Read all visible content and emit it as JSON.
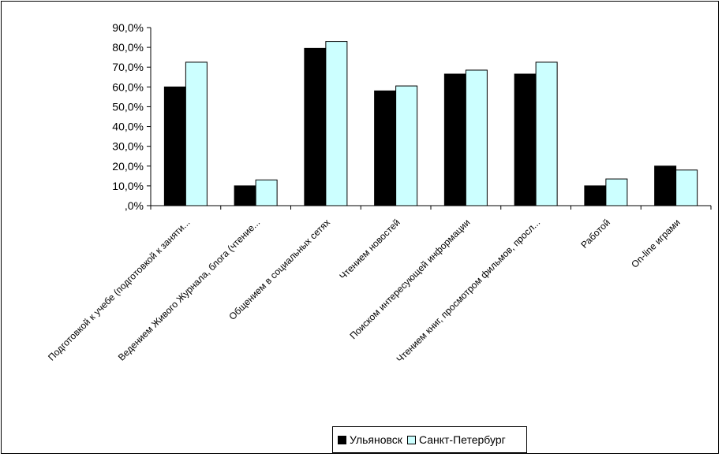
{
  "chart_data": {
    "type": "bar",
    "categories": [
      "Подготовкой к учебе (подготовкой к заняти...",
      "Ведением Живого Журнала, блога (чтение...",
      "Общением в социальных сетях",
      "Чтением новостей",
      "Поиском интересующей информации",
      "Чтением книг, просмотром фильмов, просл...",
      "Работой",
      "On-line играми"
    ],
    "series": [
      {
        "name": "Ульяновск",
        "color": "#000000",
        "values": [
          60.0,
          10.0,
          79.5,
          58.0,
          66.5,
          66.5,
          10.0,
          20.0
        ]
      },
      {
        "name": "Санкт-Петербург",
        "color": "#ccffff",
        "values": [
          72.5,
          13.0,
          83.0,
          60.5,
          68.5,
          72.5,
          13.5,
          18.0
        ]
      }
    ],
    "ylim": [
      0,
      90
    ],
    "yticks": [
      "90,0%",
      "80,0%",
      "70,0%",
      "60,0%",
      "50,0%",
      "40,0%",
      "30,0%",
      "20,0%",
      "10,0%",
      ",0%"
    ],
    "ytick_values": [
      90,
      80,
      70,
      60,
      50,
      40,
      30,
      20,
      10,
      0
    ],
    "grid": false,
    "legend_position": "bottom"
  }
}
